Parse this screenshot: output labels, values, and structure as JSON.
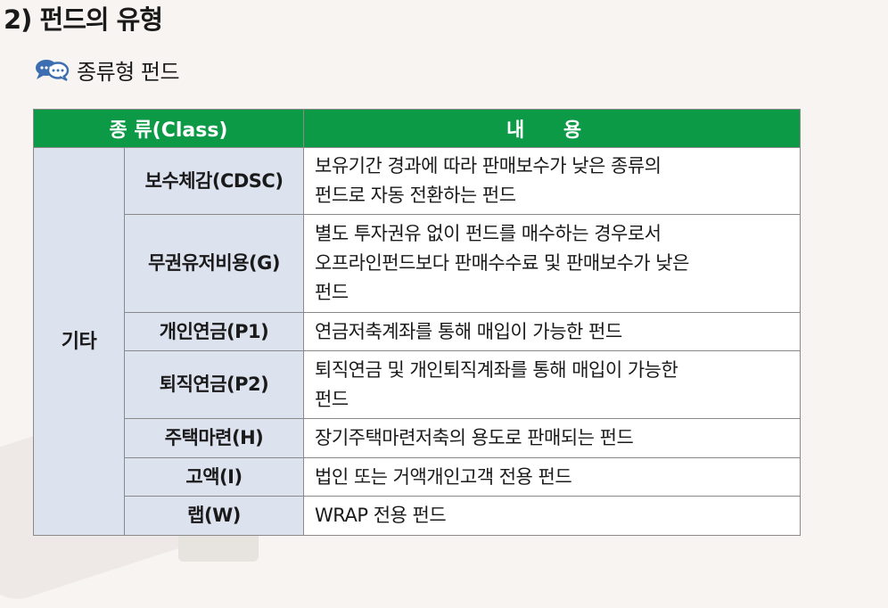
{
  "section_title": "2) 펀드의 유형",
  "subtitle": {
    "icon": "chat-bubbles-icon",
    "text": "종류형 펀드"
  },
  "colors": {
    "header_bg": "#0c9a47",
    "header_text": "#ffffff",
    "label_cell_bg": "#dde2ef",
    "border": "#8a8a8a",
    "icon_blue": "#3d6fb0"
  },
  "table": {
    "header": {
      "class_col": "종 류(Class)",
      "content_col": "내 용"
    },
    "group_label": "기타",
    "rows": [
      {
        "type": "보수체감(CDSC)",
        "lines": [
          "보유기간 경과에 따라 판매보수가 낮은 종류의",
          "펀드로 자동 전환하는 펀드"
        ]
      },
      {
        "type": "무권유저비용(G)",
        "lines": [
          "별도 투자권유 없이 펀드를 매수하는 경우로서",
          "오프라인펀드보다 판매수수료 및 판매보수가 낮은",
          "펀드"
        ]
      },
      {
        "type": "개인연금(P1)",
        "lines": [
          "연금저축계좌를 통해 매입이 가능한 펀드"
        ]
      },
      {
        "type": "퇴직연금(P2)",
        "lines": [
          "퇴직연금 및 개인퇴직계좌를 통해 매입이 가능한",
          "펀드"
        ]
      },
      {
        "type": "주택마련(H)",
        "lines": [
          "장기주택마련저축의 용도로 판매되는 펀드"
        ]
      },
      {
        "type": "고액(I)",
        "lines": [
          "법인 또는 거액개인고객 전용 펀드"
        ]
      },
      {
        "type": "랩(W)",
        "lines": [
          "WRAP 전용 펀드"
        ]
      }
    ]
  }
}
